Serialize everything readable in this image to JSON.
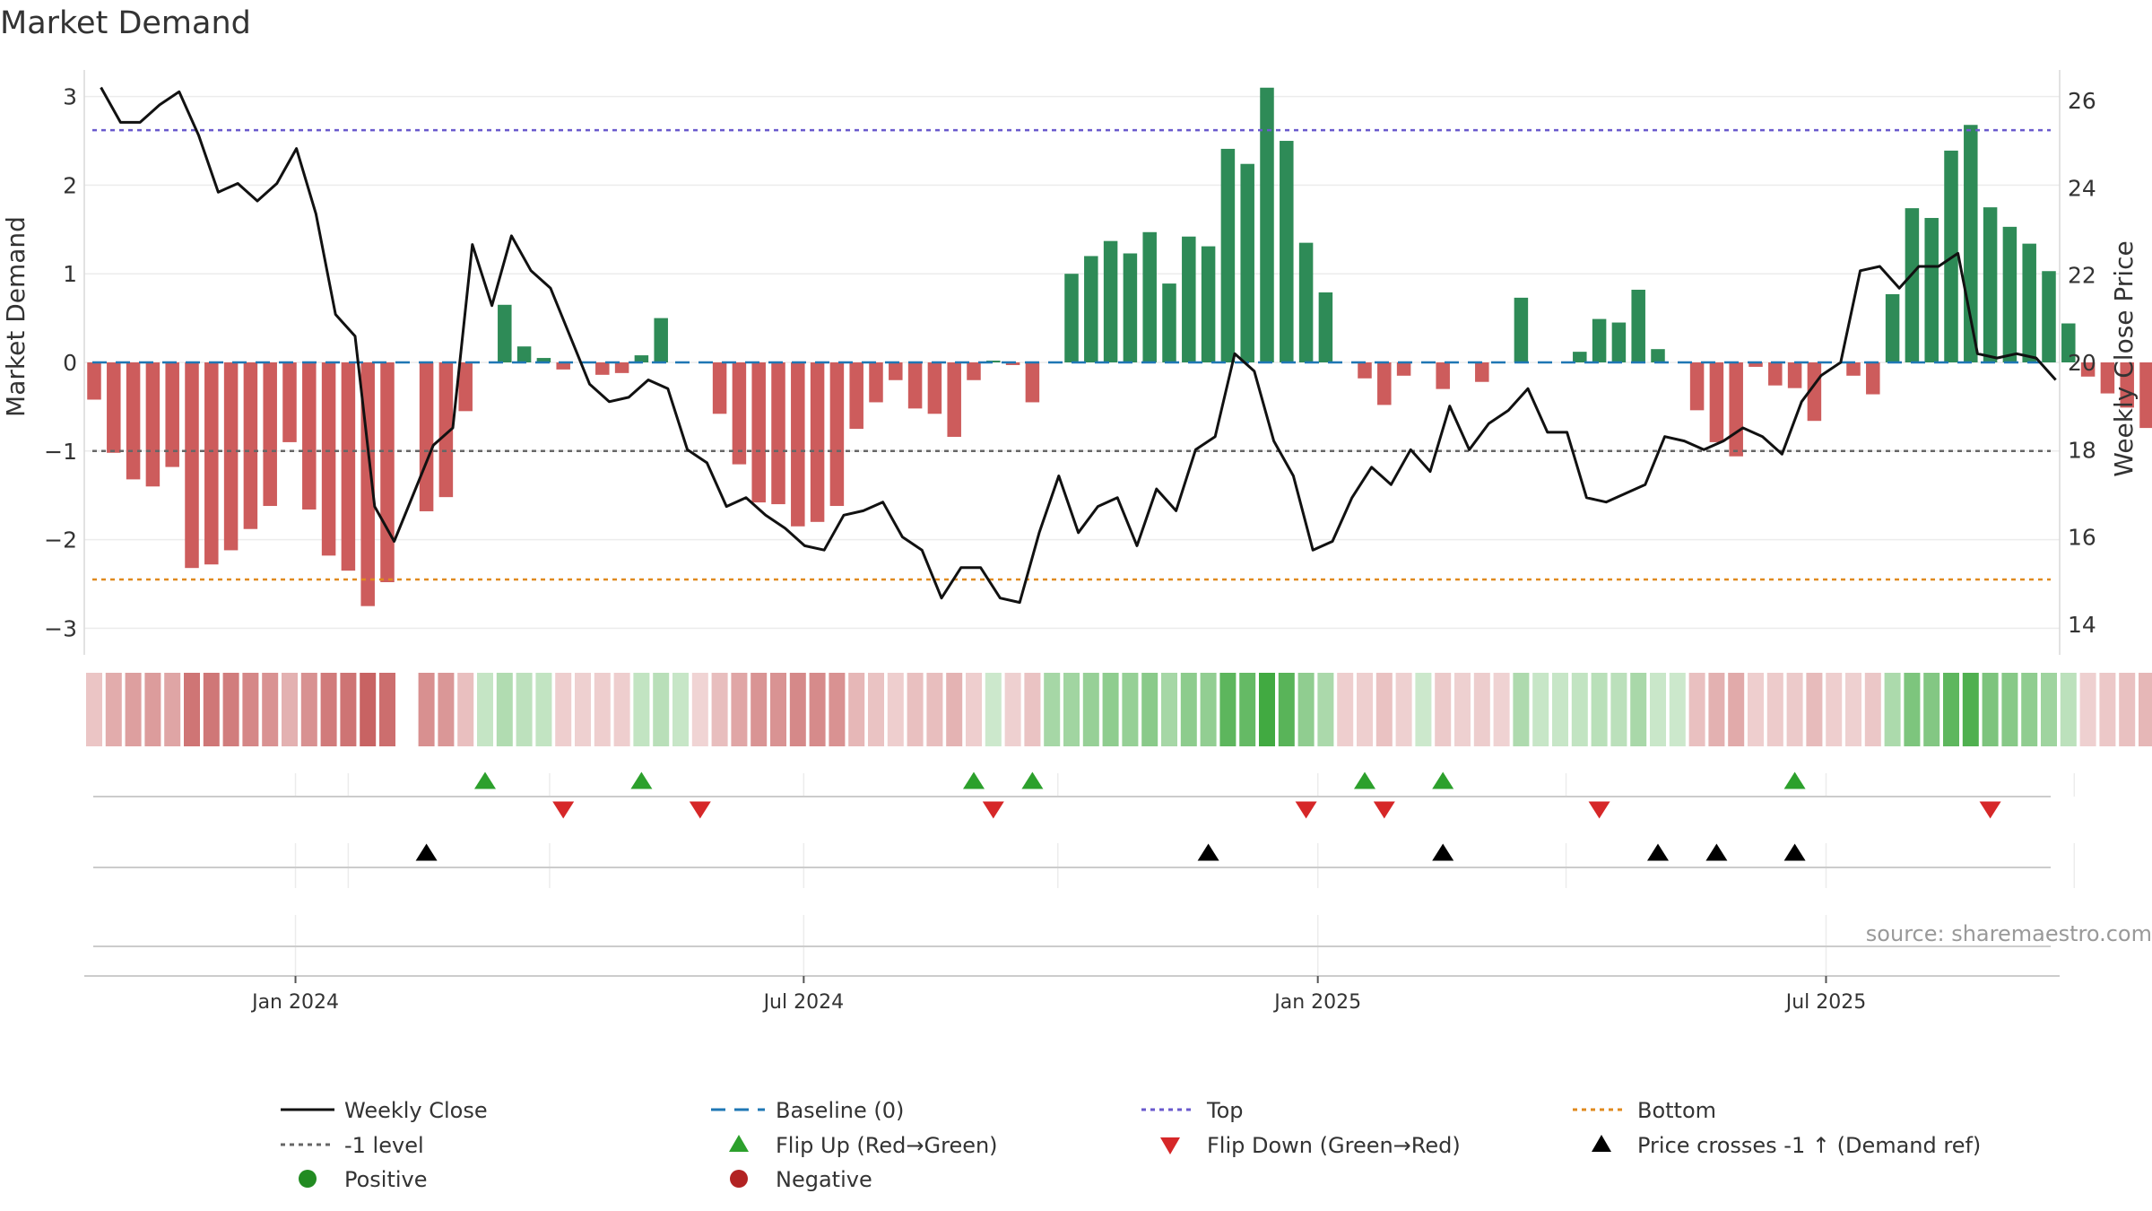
{
  "chart_data": {
    "type": "bar",
    "title": "Market Demand",
    "ylabel_left": "Market Demand",
    "ylabel_right": "Weekly Close Price",
    "source": "source: sharemaestro.com",
    "ylim_left": [
      -3.3,
      3.3
    ],
    "ylim_right": [
      13.3,
      26.7
    ],
    "left_ticks": [
      {
        "v": 3,
        "label": "3"
      },
      {
        "v": 2,
        "label": "2"
      },
      {
        "v": 1,
        "label": "1"
      },
      {
        "v": 0,
        "label": "0"
      },
      {
        "v": -1,
        "label": "−1"
      },
      {
        "v": -2,
        "label": "−2"
      },
      {
        "v": -3,
        "label": "−3"
      }
    ],
    "right_ticks": [
      {
        "v": 26,
        "label": "26"
      },
      {
        "v": 24,
        "label": "24"
      },
      {
        "v": 22,
        "label": "22"
      },
      {
        "v": 20,
        "label": "20"
      },
      {
        "v": 18,
        "label": "18"
      },
      {
        "v": 16,
        "label": "16"
      },
      {
        "v": 14,
        "label": "14"
      }
    ],
    "x_ticks": [
      {
        "week": 10.3,
        "label": "Jan 2024"
      },
      {
        "week": 36.3,
        "label": "Jul 2024"
      },
      {
        "week": 62.6,
        "label": "Jan 2025"
      },
      {
        "week": 88.6,
        "label": "Jul 2025"
      }
    ],
    "minor_ticks": [
      13,
      23.3,
      49.3,
      75.3,
      101.3
    ],
    "reference_lines": {
      "baseline": 0,
      "top": 2.62,
      "minus_one": -1,
      "bottom": -2.45
    },
    "demand": [
      -0.42,
      -1.02,
      -1.32,
      -1.4,
      -1.18,
      -2.32,
      -2.28,
      -2.12,
      -1.88,
      -1.62,
      -0.9,
      -1.66,
      -2.18,
      -2.35,
      -2.75,
      -2.48,
      0,
      -1.68,
      -1.52,
      -0.55,
      0,
      0.65,
      0.18,
      0.05,
      -0.08,
      0,
      -0.14,
      -0.12,
      0.08,
      0.5,
      0,
      0,
      -0.58,
      -1.15,
      -1.58,
      -1.6,
      -1.85,
      -1.8,
      -1.62,
      -0.75,
      -0.45,
      -0.2,
      -0.52,
      -0.58,
      -0.84,
      -0.2,
      0.02,
      -0.03,
      -0.45,
      0,
      1.0,
      1.2,
      1.37,
      1.23,
      1.47,
      0.89,
      1.42,
      1.31,
      2.41,
      2.24,
      3.1,
      2.5,
      1.35,
      0.79,
      0,
      -0.18,
      -0.48,
      -0.15,
      0,
      -0.3,
      0,
      -0.22,
      0,
      0.73,
      0,
      0,
      0.12,
      0.49,
      0.45,
      0.82,
      0.15,
      0,
      -0.54,
      -0.9,
      -1.06,
      -0.05,
      -0.26,
      -0.29,
      -0.66,
      0,
      -0.15,
      -0.36,
      0.77,
      1.74,
      1.63,
      2.39,
      2.68,
      1.75,
      1.53,
      1.34,
      1.03,
      0.44,
      -0.16,
      -0.35,
      -0.51,
      -0.74
    ],
    "weekly_close": [
      26.3,
      25.5,
      25.5,
      25.9,
      26.2,
      25.2,
      23.9,
      24.1,
      23.7,
      24.1,
      24.9,
      23.4,
      21.1,
      20.6,
      16.7,
      15.9,
      17.0,
      18.1,
      18.5,
      22.7,
      21.3,
      22.9,
      22.1,
      21.7,
      20.6,
      19.5,
      19.1,
      19.2,
      19.6,
      19.4,
      18.0,
      17.7,
      16.7,
      16.9,
      16.5,
      16.2,
      15.8,
      15.7,
      16.5,
      16.6,
      16.8,
      16.0,
      15.7,
      14.6,
      15.3,
      15.3,
      14.6,
      14.5,
      16.1,
      17.4,
      16.1,
      16.7,
      16.9,
      15.8,
      17.1,
      16.6,
      18.0,
      18.3,
      20.2,
      19.8,
      18.2,
      17.4,
      15.7,
      15.9,
      16.9,
      17.6,
      17.2,
      18.0,
      17.5,
      19.0,
      18.0,
      18.6,
      18.9,
      19.4,
      18.4,
      18.4,
      16.9,
      16.8,
      17.0,
      17.2,
      18.3,
      18.2,
      18.0,
      18.2,
      18.5,
      18.3,
      17.9,
      19.1,
      19.7,
      20.0,
      22.1,
      22.2,
      21.7,
      22.2,
      22.2,
      22.5,
      20.2,
      20.1,
      20.2,
      20.1,
      19.6
    ],
    "price_x_offset": 0.35,
    "heatmap": [
      -0.42,
      -1.02,
      -1.32,
      -1.4,
      -1.18,
      -2.32,
      -2.28,
      -2.12,
      -1.88,
      -1.62,
      -0.9,
      -1.66,
      -2.18,
      -2.35,
      -2.75,
      -2.48,
      null,
      -1.68,
      -1.52,
      -0.55,
      0.25,
      0.65,
      0.4,
      0.3,
      -0.2,
      -0.15,
      -0.2,
      -0.2,
      0.3,
      0.5,
      0.2,
      -0.05,
      -0.58,
      -1.15,
      -1.58,
      -1.6,
      -1.85,
      -1.8,
      -1.62,
      -0.75,
      -0.45,
      -0.2,
      -0.52,
      -0.58,
      -0.84,
      -0.2,
      0.1,
      -0.15,
      -0.45,
      0.9,
      1.0,
      1.2,
      1.37,
      1.23,
      1.47,
      0.89,
      1.42,
      1.31,
      2.41,
      2.24,
      3.1,
      2.5,
      1.35,
      0.79,
      -0.2,
      -0.18,
      -0.48,
      -0.15,
      0.1,
      -0.3,
      -0.15,
      -0.22,
      -0.1,
      0.73,
      0.2,
      0.2,
      0.3,
      0.49,
      0.45,
      0.82,
      0.15,
      0.1,
      -0.54,
      -0.9,
      -1.06,
      -0.2,
      -0.26,
      -0.29,
      -0.66,
      -0.2,
      -0.15,
      -0.36,
      0.77,
      1.74,
      1.63,
      2.39,
      2.68,
      1.75,
      1.53,
      1.34,
      1.03,
      0.44,
      -0.16,
      -0.35,
      -0.51,
      -0.74
    ],
    "flip_up": [
      20,
      28,
      45,
      48,
      65,
      69,
      87
    ],
    "flip_down": [
      24,
      31,
      46,
      62,
      66,
      77,
      97
    ],
    "price_cross": [
      17,
      57,
      69,
      80,
      83,
      87
    ],
    "legend": {
      "weekly_close": "Weekly Close",
      "baseline": "Baseline (0)",
      "top": "Top",
      "bottom": "Bottom",
      "minus_one": "-1 level",
      "flip_up": "Flip Up (Red→Green)",
      "flip_down": "Flip Down (Green→Red)",
      "price_cross": "Price crosses -1 ↑ (Demand ref)",
      "positive": "Positive",
      "negative": "Negative"
    }
  },
  "colors": {
    "positive_bar": "#2e8b57",
    "negative_bar": "#cd5c5c",
    "price_line": "#111111",
    "baseline": "#1f77b4",
    "top": "#6a5acd",
    "bottom": "#e08a1e",
    "minus_one": "#666666",
    "flip_up": "#2ca02c",
    "flip_down": "#d62728",
    "cross": "#000000",
    "positive_dot": "#228b22",
    "negative_dot": "#b22222"
  }
}
